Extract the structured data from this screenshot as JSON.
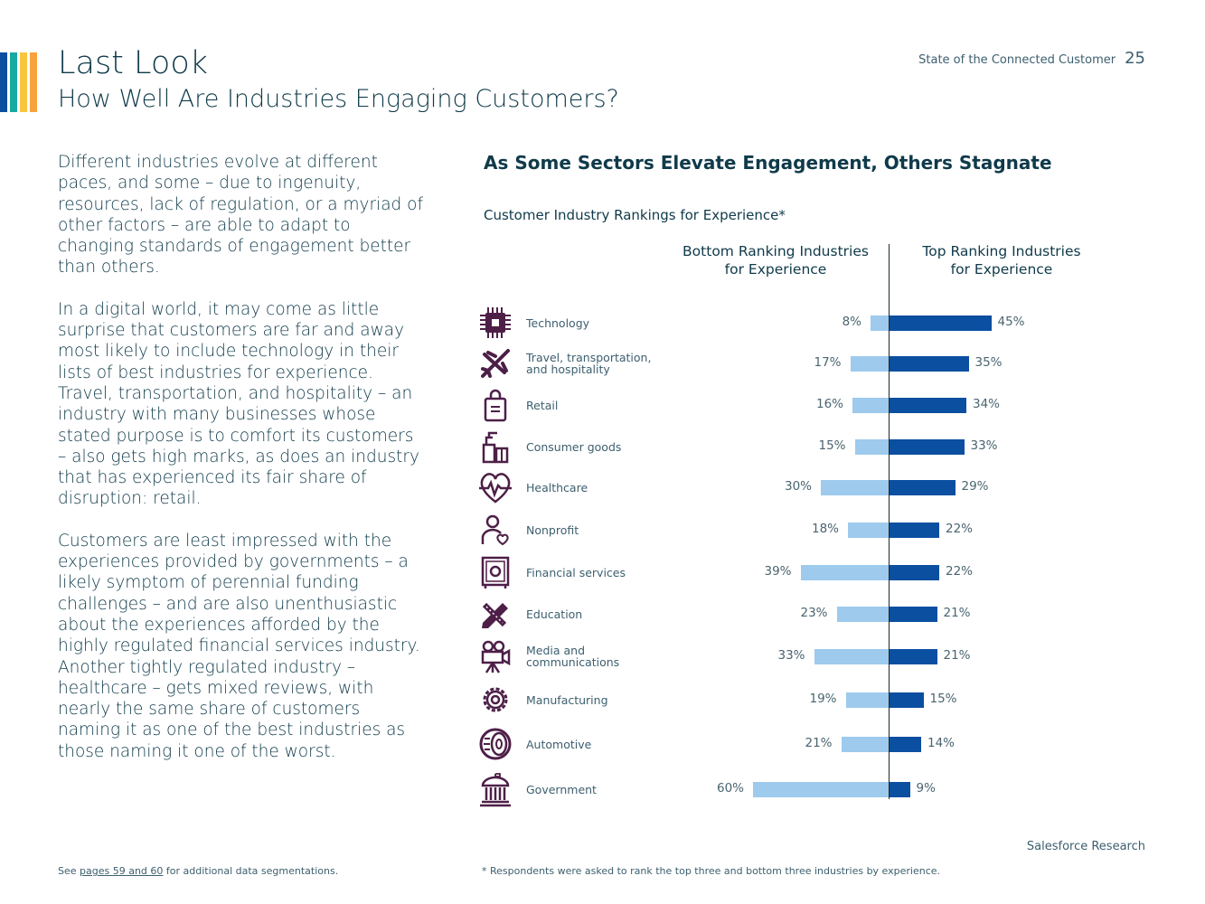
{
  "page": {
    "title": "Last Look",
    "subtitle": "How Well Are Industries Engaging Customers?",
    "report_name": "State of the Connected Customer",
    "page_number": "25",
    "brand": "Salesforce Research",
    "stripe_colors": [
      "#0b4fa0",
      "#19a9a3",
      "#f9c53d",
      "#f9a23d"
    ]
  },
  "body": {
    "paragraphs": [
      "Different industries evolve at different paces, and some – due to ingenuity, resources, lack of regulation, or a myriad of other factors – are able to adapt to changing standards of engagement better than others.",
      "In a digital world, it may come as little surprise that customers are far and away most likely to include technology in their lists of best industries for experience. Travel, transportation, and hospitality – an industry with many businesses whose stated purpose is to comfort its customers – also gets high marks, as does an industry that has experienced its fair share of disruption: retail.",
      "Customers are least impressed with the experiences provided by governments – a likely symptom of perennial funding challenges – and are also unenthusiastic about the experiences afforded by the highly regulated financial services industry. Another tightly regulated industry – healthcare – gets mixed reviews, with nearly the same share of customers naming it as one of the best industries as those naming it one of the worst."
    ]
  },
  "footnotes": {
    "left_prefix": "See ",
    "left_link": "pages 59 and 60",
    "left_suffix": " for additional data segmentations.",
    "right": "* Respondents were asked to rank the top three and bottom three industries by experience."
  },
  "chart_data": {
    "type": "bar",
    "title": "As Some Sectors Elevate Engagement, Others Stagnate",
    "subtitle": "Customer Industry Rankings for Experience*",
    "unit": "%",
    "orientation": "horizontal-diverging",
    "series": [
      {
        "name": "Bottom Ranking Industries for Experience",
        "name_lines": [
          "Bottom Ranking Industries",
          "for Experience"
        ],
        "color": "#9dcaed",
        "values": [
          8,
          17,
          16,
          15,
          30,
          18,
          39,
          23,
          33,
          19,
          21,
          60
        ]
      },
      {
        "name": "Top Ranking Industries for Experience",
        "name_lines": [
          "Top Ranking Industries",
          "for Experience"
        ],
        "color": "#0b4fa0",
        "values": [
          45,
          35,
          34,
          33,
          29,
          22,
          22,
          21,
          21,
          15,
          14,
          9
        ]
      }
    ],
    "categories": [
      {
        "label_lines": [
          "Technology"
        ],
        "icon": "chip-icon"
      },
      {
        "label_lines": [
          "Travel, transportation,",
          "and hospitality"
        ],
        "icon": "airplane-icon"
      },
      {
        "label_lines": [
          "Retail"
        ],
        "icon": "shopping-bag-icon"
      },
      {
        "label_lines": [
          "Consumer goods"
        ],
        "icon": "spray-bottle-icon"
      },
      {
        "label_lines": [
          "Healthcare"
        ],
        "icon": "heartbeat-icon"
      },
      {
        "label_lines": [
          "Nonprofit"
        ],
        "icon": "person-heart-icon"
      },
      {
        "label_lines": [
          "Financial services"
        ],
        "icon": "safe-icon"
      },
      {
        "label_lines": [
          "Education"
        ],
        "icon": "pencil-ruler-icon"
      },
      {
        "label_lines": [
          "Media and",
          "communications"
        ],
        "icon": "film-camera-icon"
      },
      {
        "label_lines": [
          "Manufacturing"
        ],
        "icon": "gear-icon"
      },
      {
        "label_lines": [
          "Automotive"
        ],
        "icon": "tire-icon"
      },
      {
        "label_lines": [
          "Government"
        ],
        "icon": "government-building-icon"
      }
    ],
    "xlim": [
      0,
      60
    ]
  }
}
